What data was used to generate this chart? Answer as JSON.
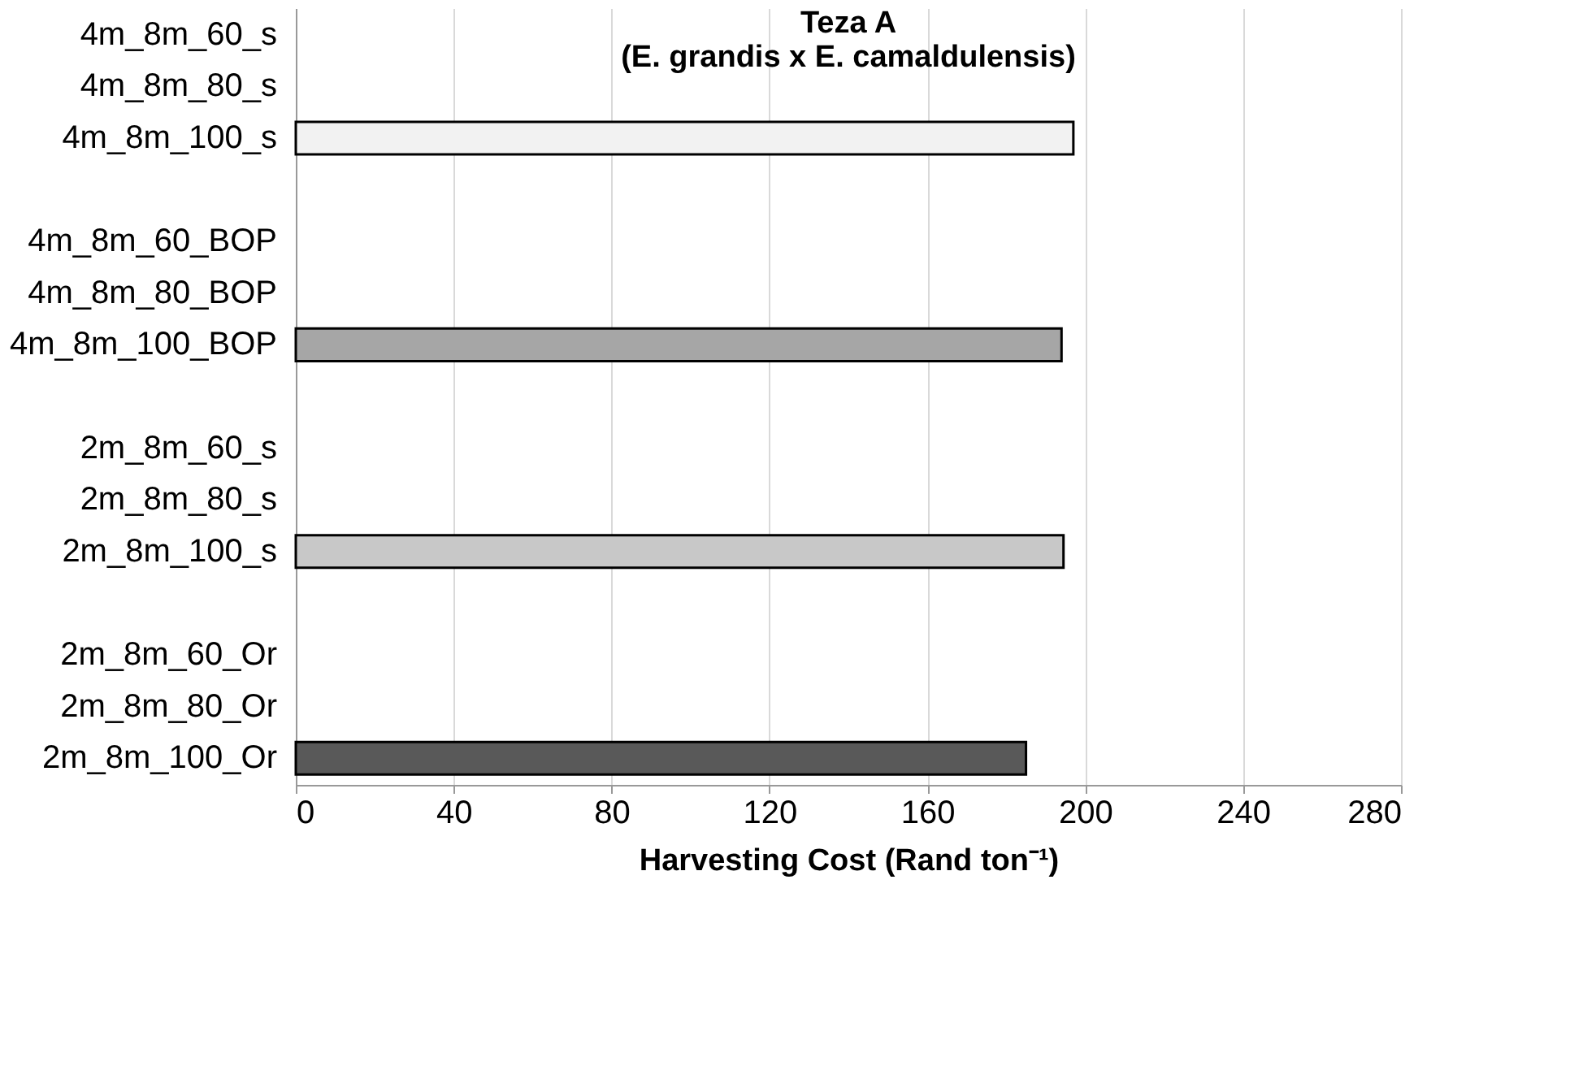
{
  "chart_data": {
    "type": "bar",
    "orientation": "horizontal",
    "title": "Teza A\n(E. grandis x E. camaldulensis)",
    "xlabel": "Harvesting Cost (Rand ton⁻¹)",
    "categories": [
      "4m_8m_60_s",
      "4m_8m_80_s",
      "4m_8m_100_s",
      null,
      "4m_8m_60_BOP",
      "4m_8m_80_BOP",
      "4m_8m_100_BOP",
      null,
      "2m_8m_60_s",
      "2m_8m_80_s",
      "2m_8m_100_s",
      null,
      "2m_8m_60_Or",
      "2m_8m_80_Or",
      "2m_8m_100_Or"
    ],
    "values": [
      null,
      null,
      197,
      null,
      null,
      null,
      194,
      null,
      null,
      null,
      194.5,
      null,
      null,
      null,
      185
    ],
    "colors": [
      "#f2f2f2",
      "#f2f2f2",
      "#f2f2f2",
      "#ffffff",
      "#a6a6a6",
      "#a6a6a6",
      "#a6a6a6",
      "#ffffff",
      "#c8c8c8",
      "#c8c8c8",
      "#c8c8c8",
      "#ffffff",
      "#595959",
      "#595959",
      "#595959"
    ],
    "xlim": [
      0,
      280
    ],
    "xticks": [
      0,
      40,
      80,
      120,
      160,
      200,
      240,
      280
    ],
    "grid": "x"
  }
}
